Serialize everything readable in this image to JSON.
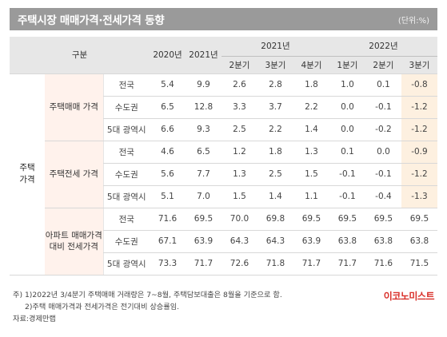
{
  "header": {
    "title": "주택시장 매매가격·전세가격 동향",
    "unit": "(단위:%)"
  },
  "columns": {
    "category": "구분",
    "y2020": "2020년",
    "y2021": "2021년",
    "group2021": "2021년",
    "group2022": "2022년",
    "q2021": [
      "2분기",
      "3분기",
      "4분기"
    ],
    "q2022": [
      "1분기",
      "2분기",
      "3분기"
    ]
  },
  "top_group": "주택\n가격",
  "groups": [
    {
      "label": "주택매매\n가격",
      "rows": [
        {
          "region": "전국",
          "values": [
            "5.4",
            "9.9",
            "2.6",
            "2.8",
            "1.8",
            "1.0",
            "0.1",
            "-0.8"
          ]
        },
        {
          "region": "수도권",
          "values": [
            "6.5",
            "12.8",
            "3.3",
            "3.7",
            "2.2",
            "0.0",
            "-0.1",
            "-1.2"
          ]
        },
        {
          "region": "5대 광역시",
          "values": [
            "6.6",
            "9.3",
            "2.5",
            "2.2",
            "1.4",
            "0.0",
            "-0.2",
            "-1.2"
          ]
        }
      ]
    },
    {
      "label": "주택전세\n가격",
      "rows": [
        {
          "region": "전국",
          "values": [
            "4.6",
            "6.5",
            "1.2",
            "1.8",
            "1.3",
            "0.1",
            "0.0",
            "-0.9"
          ]
        },
        {
          "region": "수도권",
          "values": [
            "5.6",
            "7.7",
            "1.3",
            "2.5",
            "1.5",
            "-0.1",
            "-0.1",
            "-1.2"
          ]
        },
        {
          "region": "5대 광역시",
          "values": [
            "5.1",
            "7.0",
            "1.5",
            "1.4",
            "1.1",
            "-0.1",
            "-0.4",
            "-1.3"
          ]
        }
      ]
    },
    {
      "label": "아파트\n매매가격\n대비\n전세가격",
      "rows": [
        {
          "region": "전국",
          "values": [
            "71.6",
            "69.5",
            "70.0",
            "69.8",
            "69.5",
            "69.5",
            "69.5",
            "69.5"
          ]
        },
        {
          "region": "수도권",
          "values": [
            "67.1",
            "63.9",
            "64.3",
            "64.3",
            "63.9",
            "63.8",
            "63.8",
            "63.8"
          ]
        },
        {
          "region": "5대 광역시",
          "values": [
            "73.3",
            "71.7",
            "72.6",
            "71.8",
            "71.7",
            "71.7",
            "71.6",
            "71.5"
          ]
        }
      ]
    }
  ],
  "notes": [
    "주) 1)2022년 3/4분기 주택매매 거래량은 7~8월, 주택담보대출은 8월을 기준으로 함.",
    "2)주택 매매가격과 전세가격은 전기대비 상승률임.",
    "자료:경제만랩"
  ],
  "brand": "이코노미스트",
  "colors": {
    "title_bar": "#9a9a9a",
    "header_bg": "#e7e7e7",
    "group_bg": "#fff2ec",
    "highlight": "#fdf0e0",
    "brand": "#d9302a"
  }
}
